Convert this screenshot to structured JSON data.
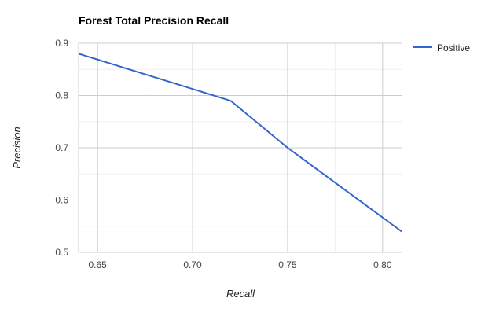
{
  "chart_data": {
    "type": "line",
    "title": "Forest Total Precision Recall",
    "xlabel": "Recall",
    "ylabel": "Precision",
    "xlim": [
      0.64,
      0.81
    ],
    "ylim": [
      0.5,
      0.9
    ],
    "x_ticks": [
      "0.65",
      "0.70",
      "0.75",
      "0.80"
    ],
    "y_ticks": [
      "0.5",
      "0.6",
      "0.7",
      "0.8",
      "0.9"
    ],
    "x_tick_values": [
      0.65,
      0.7,
      0.75,
      0.8
    ],
    "y_tick_values": [
      0.5,
      0.6,
      0.7,
      0.8,
      0.9
    ],
    "grid": true,
    "legend_position": "right",
    "series": [
      {
        "name": "Positive",
        "color": "#3366cc",
        "x": [
          0.64,
          0.72,
          0.75,
          0.81
        ],
        "y": [
          0.88,
          0.79,
          0.7,
          0.54
        ]
      }
    ]
  }
}
